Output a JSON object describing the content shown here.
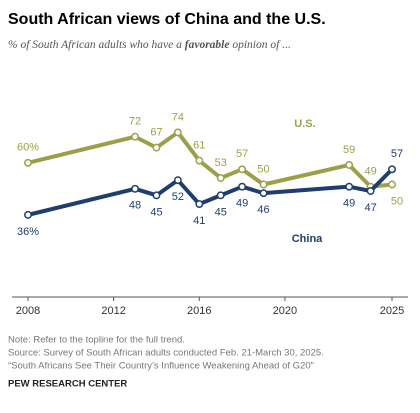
{
  "chart_data": {
    "type": "line",
    "title": "South African views of China and the U.S.",
    "subtitle": [
      "% of South African adults who have a ",
      "favorable",
      " opinion of ..."
    ],
    "x": [
      2008,
      2013,
      2014,
      2015,
      2016,
      2017,
      2018,
      2019,
      2023,
      2024,
      2025
    ],
    "xlim": [
      2008,
      2025
    ],
    "xticks": [
      2008,
      2012,
      2016,
      2020,
      2025
    ],
    "ylim": [
      0,
      100
    ],
    "series": [
      {
        "name": "U.S.",
        "color": "#9ba048",
        "values": [
          60,
          72,
          67,
          74,
          61,
          53,
          57,
          50,
          59,
          49,
          50
        ],
        "value_labels": [
          "60%",
          "72",
          "67",
          "74",
          "61",
          "53",
          "57",
          "50",
          "59",
          "49",
          "50"
        ]
      },
      {
        "name": "China",
        "color": "#1f3d6e",
        "values": [
          36,
          48,
          45,
          52,
          41,
          45,
          49,
          46,
          49,
          47,
          57
        ],
        "value_labels": [
          "36%",
          "48",
          "45",
          "52",
          "41",
          "45",
          "49",
          "46",
          "49",
          "47",
          "57"
        ]
      }
    ],
    "notes": [
      "Note: Refer to the topline for the full trend.",
      "Source: Survey of South African adults conducted Feb. 21-March 30, 2025.",
      "“South Africans See Their Country’s Influence Weakening Ahead of G20”"
    ],
    "source_label": "PEW RESEARCH CENTER"
  }
}
